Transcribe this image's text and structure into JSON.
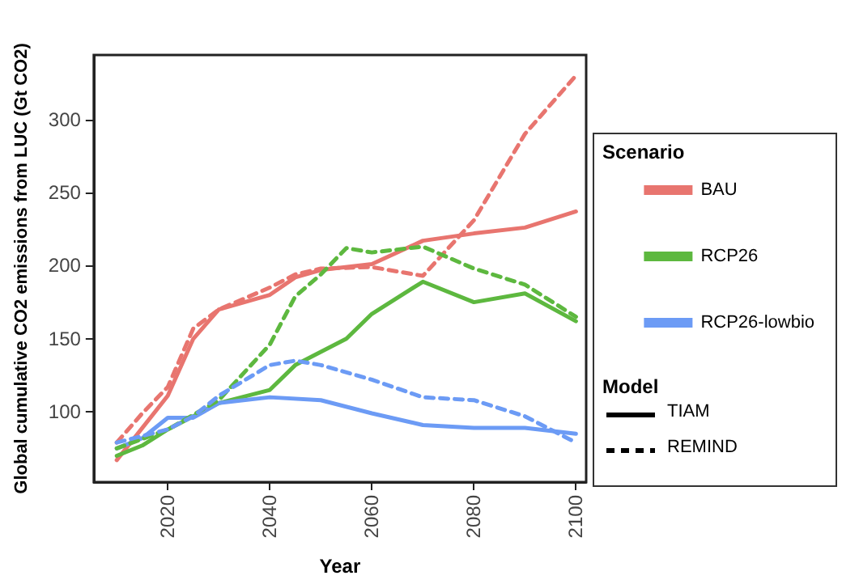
{
  "chart_data": {
    "type": "line",
    "xlabel": "Year",
    "ylabel": "Global cumulative CO2 emissions from LUC (Gt CO2)",
    "xlim": [
      2005.5,
      2102
    ],
    "ylim": [
      52,
      344
    ],
    "xticks": [
      2020,
      2040,
      2060,
      2080,
      2100
    ],
    "yticks": [
      100,
      150,
      200,
      250,
      300
    ],
    "grid": false,
    "legend": "right",
    "legend_title": "Scenario",
    "marker": "none",
    "annotations": [
      "Model",
      "TIAM",
      "REMIND"
    ],
    "series": [
      {
        "name": "BAU",
        "color": "#e8756f",
        "line_style": "solid",
        "x": [
          2010,
          2020,
          2025,
          2030,
          2040,
          2045,
          2050,
          2060,
          2070,
          2080,
          2090,
          2100
        ],
        "values": [
          67,
          111,
          150,
          170,
          180,
          192,
          197,
          201,
          217,
          222,
          226,
          237
        ]
      },
      {
        "name": "RCP26",
        "color": "#5db83f",
        "line_style": "solid",
        "x": [
          2010,
          2015,
          2020,
          2030,
          2040,
          2045,
          2050,
          2055,
          2060,
          2070,
          2080,
          2090,
          2100
        ],
        "values": [
          70,
          77,
          88,
          106,
          115,
          132,
          141,
          150,
          167,
          189,
          175,
          181,
          162
        ]
      },
      {
        "name": "RCP26-lowbio",
        "color": "#6c9bf5",
        "line_style": "solid",
        "x": [
          2010,
          2015,
          2020,
          2025,
          2030,
          2040,
          2050,
          2060,
          2070,
          2080,
          2090,
          2100
        ],
        "values": [
          75,
          82,
          96,
          96,
          106,
          110,
          108,
          99,
          91,
          89,
          89,
          85
        ]
      },
      {
        "color": "#e8756f",
        "line_style": "dashed",
        "x": [
          2010,
          2015,
          2020,
          2025,
          2030,
          2040,
          2045,
          2050,
          2060,
          2070,
          2080,
          2090,
          2100
        ],
        "values": [
          79,
          99,
          117,
          157,
          170,
          185,
          194,
          198,
          199,
          193,
          231,
          290,
          330
        ]
      },
      {
        "color": "#5db83f",
        "line_style": "dashed",
        "x": [
          2010,
          2020,
          2030,
          2040,
          2045,
          2050,
          2055,
          2060,
          2070,
          2080,
          2090,
          2100
        ],
        "values": [
          75,
          88,
          108,
          146,
          179,
          194,
          212,
          209,
          213,
          198,
          187,
          165
        ]
      },
      {
        "color": "#6c9bf5",
        "line_style": "dashed",
        "x": [
          2010,
          2020,
          2025,
          2030,
          2040,
          2045,
          2050,
          2060,
          2070,
          2080,
          2090,
          2100
        ],
        "values": [
          79,
          88,
          97,
          111,
          132,
          135,
          132,
          122,
          110,
          108,
          97,
          79
        ]
      }
    ]
  }
}
